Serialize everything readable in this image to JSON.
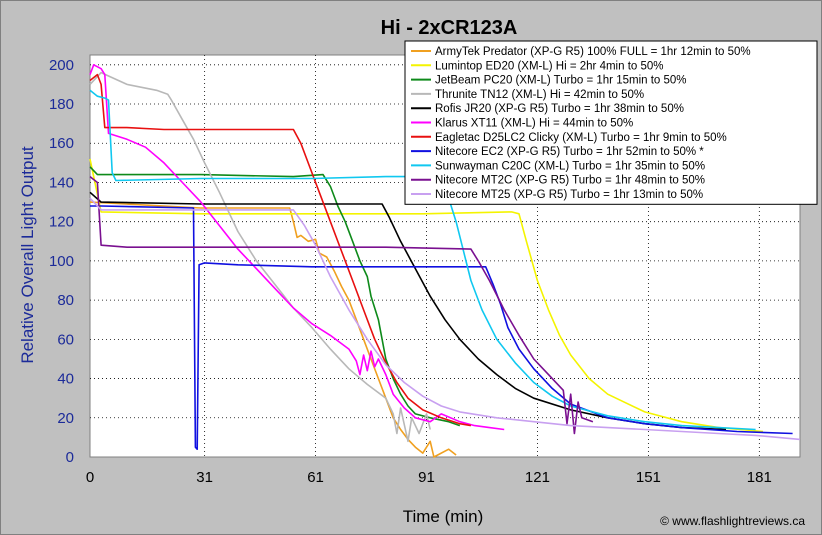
{
  "chart_data": {
    "type": "line",
    "title": "Hi - 2xCR123A",
    "xlabel": "Time (min)",
    "ylabel": "Relative Overall Light Output",
    "credit": "© www.flashlightreviews.ca",
    "xlim": [
      0,
      192
    ],
    "ylim": [
      0,
      205
    ],
    "x_ticks": [
      0,
      31,
      61,
      91,
      121,
      151,
      181
    ],
    "y_ticks": [
      0,
      20,
      40,
      60,
      80,
      100,
      120,
      140,
      160,
      180,
      200
    ],
    "grid": true,
    "legend_position": "top-right",
    "series": [
      {
        "name": "ArmyTek Predator (XP-G R5) 100% FULL = 1hr 12min to 50%",
        "color": "#f0a020",
        "points": [
          [
            0,
            130
          ],
          [
            30,
            127
          ],
          [
            54,
            127
          ],
          [
            55,
            120
          ],
          [
            56,
            112
          ],
          [
            57,
            113
          ],
          [
            59,
            110
          ],
          [
            61,
            111
          ],
          [
            62,
            104
          ],
          [
            64,
            102
          ],
          [
            66,
            95
          ],
          [
            68,
            87
          ],
          [
            70,
            80
          ],
          [
            72,
            70
          ],
          [
            74,
            60
          ],
          [
            76,
            50
          ],
          [
            78,
            40
          ],
          [
            80,
            30
          ],
          [
            82,
            20
          ],
          [
            84,
            14
          ],
          [
            86,
            9
          ],
          [
            88,
            5
          ],
          [
            90,
            2
          ],
          [
            92,
            8
          ],
          [
            93,
            0
          ],
          [
            97,
            4
          ],
          [
            99,
            1
          ]
        ]
      },
      {
        "name": "Lumintop ED20 (XM-L) Hi = 2hr 4min to 50%",
        "color": "#f4f400",
        "points": [
          [
            0,
            152
          ],
          [
            3,
            125
          ],
          [
            30,
            124
          ],
          [
            60,
            124
          ],
          [
            90,
            124
          ],
          [
            114,
            125
          ],
          [
            116,
            124
          ],
          [
            118,
            110
          ],
          [
            121,
            90
          ],
          [
            124,
            75
          ],
          [
            127,
            62
          ],
          [
            130,
            52
          ],
          [
            135,
            40
          ],
          [
            140,
            32
          ],
          [
            150,
            23
          ],
          [
            160,
            18
          ],
          [
            170,
            15
          ],
          [
            182,
            13
          ]
        ]
      },
      {
        "name": "JetBeam PC20 (XM-L) Turbo = 1hr 15min to 50%",
        "color": "#0e8a1a",
        "points": [
          [
            0,
            148
          ],
          [
            2,
            144
          ],
          [
            30,
            144
          ],
          [
            55,
            143
          ],
          [
            63,
            144
          ],
          [
            65,
            138
          ],
          [
            67,
            128
          ],
          [
            69,
            120
          ],
          [
            71,
            110
          ],
          [
            73,
            100
          ],
          [
            75,
            92
          ],
          [
            76,
            82
          ],
          [
            78,
            70
          ],
          [
            79,
            60
          ],
          [
            80,
            50
          ],
          [
            82,
            40
          ],
          [
            84,
            32
          ],
          [
            86,
            26
          ],
          [
            88,
            22
          ],
          [
            92,
            20
          ],
          [
            97,
            18
          ],
          [
            100,
            16
          ]
        ]
      },
      {
        "name": "Thrunite TN12 (XM-L) Hi = 42min to 50%",
        "color": "#b8b8b8",
        "points": [
          [
            0,
            190
          ],
          [
            3,
            196
          ],
          [
            10,
            190
          ],
          [
            18,
            187
          ],
          [
            21,
            185
          ],
          [
            22,
            182
          ],
          [
            25,
            172
          ],
          [
            28,
            162
          ],
          [
            31,
            150
          ],
          [
            35,
            135
          ],
          [
            40,
            115
          ],
          [
            45,
            100
          ],
          [
            50,
            88
          ],
          [
            55,
            76
          ],
          [
            60,
            66
          ],
          [
            65,
            55
          ],
          [
            70,
            45
          ],
          [
            75,
            37
          ],
          [
            80,
            30
          ],
          [
            82,
            22
          ],
          [
            83,
            12
          ],
          [
            84,
            25
          ],
          [
            86,
            8
          ],
          [
            87,
            20
          ],
          [
            89,
            12
          ],
          [
            91,
            22
          ],
          [
            92,
            14
          ]
        ]
      },
      {
        "name": "Rofis JR20 (XP-G R5) Turbo = 1hr 38min to 50%",
        "color": "#000000",
        "points": [
          [
            0,
            135
          ],
          [
            3,
            130
          ],
          [
            30,
            129
          ],
          [
            60,
            129
          ],
          [
            76,
            129
          ],
          [
            79,
            129
          ],
          [
            81,
            122
          ],
          [
            84,
            110
          ],
          [
            88,
            96
          ],
          [
            92,
            82
          ],
          [
            96,
            70
          ],
          [
            100,
            60
          ],
          [
            105,
            50
          ],
          [
            110,
            42
          ],
          [
            115,
            35
          ],
          [
            120,
            30
          ],
          [
            130,
            24
          ],
          [
            140,
            20
          ],
          [
            150,
            17
          ],
          [
            160,
            15
          ],
          [
            172,
            14
          ]
        ]
      },
      {
        "name": "Klarus XT11 (XM-L) Hi = 44min to 50%",
        "color": "#ff00ff",
        "points": [
          [
            0,
            195
          ],
          [
            1,
            200
          ],
          [
            3,
            198
          ],
          [
            4,
            195
          ],
          [
            5,
            165
          ],
          [
            10,
            162
          ],
          [
            15,
            158
          ],
          [
            20,
            150
          ],
          [
            25,
            140
          ],
          [
            30,
            130
          ],
          [
            35,
            118
          ],
          [
            40,
            106
          ],
          [
            45,
            96
          ],
          [
            50,
            86
          ],
          [
            55,
            76
          ],
          [
            60,
            68
          ],
          [
            65,
            62
          ],
          [
            70,
            55
          ],
          [
            72,
            49
          ],
          [
            73,
            42
          ],
          [
            74,
            52
          ],
          [
            75,
            44
          ],
          [
            76,
            54
          ],
          [
            77,
            46
          ],
          [
            78,
            50
          ],
          [
            80,
            42
          ],
          [
            82,
            32
          ],
          [
            85,
            25
          ],
          [
            88,
            20
          ],
          [
            92,
            18
          ],
          [
            95,
            22
          ],
          [
            100,
            18
          ],
          [
            104,
            16
          ],
          [
            108,
            15
          ],
          [
            112,
            14
          ]
        ]
      },
      {
        "name": "Eagletac D25LC2 Clicky (XM-L) Turbo = 1hr 9min to 50%",
        "color": "#e81010",
        "points": [
          [
            0,
            192
          ],
          [
            2,
            195
          ],
          [
            3,
            190
          ],
          [
            4,
            168
          ],
          [
            10,
            168
          ],
          [
            20,
            167
          ],
          [
            30,
            167
          ],
          [
            40,
            167
          ],
          [
            50,
            167
          ],
          [
            55,
            167
          ],
          [
            57,
            160
          ],
          [
            59,
            150
          ],
          [
            62,
            135
          ],
          [
            65,
            120
          ],
          [
            68,
            105
          ],
          [
            71,
            90
          ],
          [
            74,
            75
          ],
          [
            77,
            60
          ],
          [
            80,
            48
          ],
          [
            83,
            38
          ],
          [
            86,
            30
          ],
          [
            90,
            24
          ],
          [
            95,
            20
          ],
          [
            100,
            17
          ],
          [
            103,
            16
          ]
        ]
      },
      {
        "name": "Nitecore EC2 (XP-G R5) Turbo = 1hr 52min to 50% *",
        "color": "#1010e0",
        "points": [
          [
            0,
            128
          ],
          [
            3,
            128
          ],
          [
            28,
            127
          ],
          [
            28.5,
            5
          ],
          [
            29,
            4
          ],
          [
            29.5,
            98
          ],
          [
            31,
            99
          ],
          [
            40,
            98
          ],
          [
            60,
            97
          ],
          [
            80,
            97
          ],
          [
            95,
            97
          ],
          [
            107,
            97
          ],
          [
            109,
            88
          ],
          [
            111,
            78
          ],
          [
            113,
            66
          ],
          [
            116,
            55
          ],
          [
            120,
            45
          ],
          [
            125,
            35
          ],
          [
            130,
            27
          ],
          [
            140,
            20
          ],
          [
            150,
            17
          ],
          [
            160,
            15
          ],
          [
            175,
            13
          ],
          [
            190,
            12
          ]
        ]
      },
      {
        "name": "Sunwayman C20C (XM-L) Turbo = 1hr 35min to 50%",
        "color": "#10c8f0",
        "points": [
          [
            0,
            187
          ],
          [
            2,
            184
          ],
          [
            4,
            183
          ],
          [
            5,
            182
          ],
          [
            6,
            145
          ],
          [
            7,
            141
          ],
          [
            30,
            142
          ],
          [
            60,
            142
          ],
          [
            80,
            143
          ],
          [
            90,
            143
          ],
          [
            93,
            143
          ],
          [
            95,
            140
          ],
          [
            97,
            132
          ],
          [
            99,
            120
          ],
          [
            101,
            105
          ],
          [
            103,
            90
          ],
          [
            106,
            75
          ],
          [
            110,
            60
          ],
          [
            115,
            48
          ],
          [
            120,
            38
          ],
          [
            125,
            31
          ],
          [
            130,
            26
          ],
          [
            140,
            21
          ],
          [
            150,
            18
          ],
          [
            160,
            16
          ],
          [
            170,
            15
          ],
          [
            180,
            14
          ]
        ]
      },
      {
        "name": "Nitecore MT2C (XP-G R5) Turbo = 1hr 48min to 50%",
        "color": "#7a1090",
        "points": [
          [
            0,
            143
          ],
          [
            2,
            140
          ],
          [
            3,
            108
          ],
          [
            10,
            107
          ],
          [
            30,
            107
          ],
          [
            60,
            107
          ],
          [
            80,
            107
          ],
          [
            103,
            106
          ],
          [
            105,
            100
          ],
          [
            108,
            90
          ],
          [
            112,
            75
          ],
          [
            116,
            62
          ],
          [
            120,
            50
          ],
          [
            124,
            42
          ],
          [
            128,
            34
          ],
          [
            129,
            17
          ],
          [
            130,
            32
          ],
          [
            131,
            12
          ],
          [
            132,
            28
          ],
          [
            133,
            20
          ],
          [
            136,
            18
          ]
        ]
      },
      {
        "name": "Nitecore MT25 (XP-G R5) Turbo = 1hr 13min to 50%",
        "color": "#c8a0f0",
        "points": [
          [
            0,
            132
          ],
          [
            3,
            126
          ],
          [
            30,
            126
          ],
          [
            55,
            126
          ],
          [
            58,
            118
          ],
          [
            61,
            108
          ],
          [
            65,
            92
          ],
          [
            70,
            75
          ],
          [
            75,
            60
          ],
          [
            80,
            47
          ],
          [
            85,
            38
          ],
          [
            90,
            31
          ],
          [
            95,
            26
          ],
          [
            100,
            23
          ],
          [
            110,
            20
          ],
          [
            120,
            18
          ],
          [
            130,
            16
          ],
          [
            140,
            15
          ],
          [
            150,
            14
          ],
          [
            160,
            13
          ],
          [
            170,
            12
          ],
          [
            180,
            11
          ],
          [
            192,
            9
          ]
        ]
      }
    ]
  }
}
